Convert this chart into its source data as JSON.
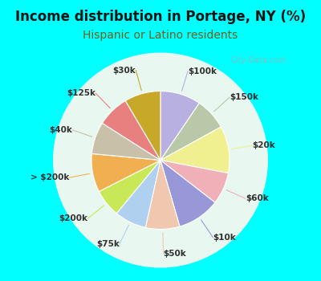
{
  "title": "Income distribution in Portage, NY (%)",
  "subtitle": "Hispanic or Latino residents",
  "bg_color": "#00ffff",
  "chart_bg_color": "#e8f8f0",
  "labels": [
    "$100k",
    "$150k",
    "$20k",
    "$60k",
    "$10k",
    "$50k",
    "$75k",
    "$200k",
    "> $200k",
    "$40k",
    "$125k",
    "$30k"
  ],
  "sizes": [
    9.5,
    7.5,
    11.0,
    7.5,
    10.0,
    8.0,
    7.5,
    6.5,
    9.0,
    7.5,
    7.5,
    8.5
  ],
  "colors": [
    "#b8b0e0",
    "#b8c8a8",
    "#f0f090",
    "#f0b0b8",
    "#9898d8",
    "#f0c8b0",
    "#b0d0f0",
    "#c8e858",
    "#f0b050",
    "#c8c0a8",
    "#e88080",
    "#c8a828"
  ],
  "label_color": "#303030",
  "title_color": "#151515",
  "subtitle_color": "#706020",
  "title_fontsize": 12,
  "subtitle_fontsize": 10,
  "watermark": "City-Data.com"
}
